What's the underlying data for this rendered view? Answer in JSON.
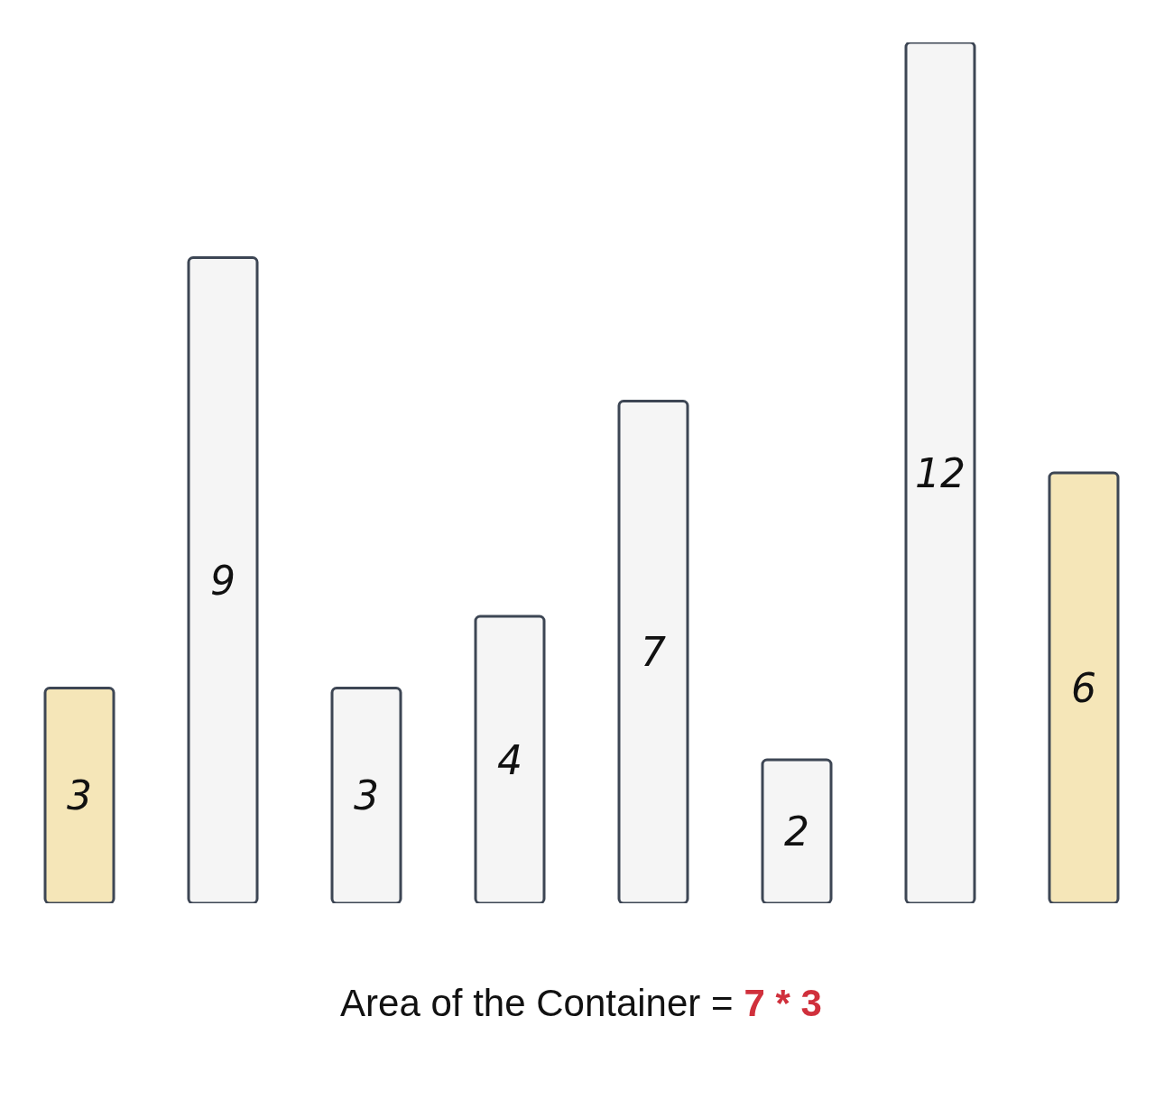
{
  "chart_data": {
    "type": "bar",
    "categories": [
      null,
      null,
      null,
      null,
      null,
      null,
      null,
      null
    ],
    "values": [
      3,
      9,
      3,
      4,
      7,
      2,
      12,
      6
    ],
    "colors": [
      "#f5e6b8",
      "#f5f5f5",
      "#f5f5f5",
      "#f5f5f5",
      "#f5f5f5",
      "#f5f5f5",
      "#f5f5f5",
      "#f5e6b8"
    ],
    "data_labels": true,
    "grid": false,
    "legend": false,
    "annotations": [
      "Area of the Container =",
      "7 * 3"
    ]
  }
}
